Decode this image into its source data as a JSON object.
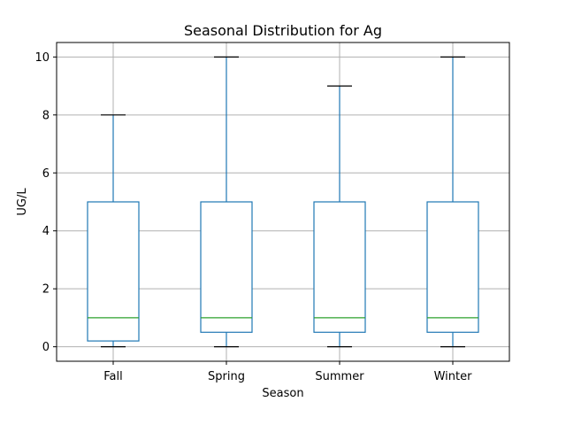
{
  "chart_data": {
    "type": "box",
    "title": "Seasonal Distribution for Ag",
    "xlabel": "Season",
    "ylabel": "UG/L",
    "ylim": [
      -0.5,
      10.5
    ],
    "yticks": [
      0,
      2,
      4,
      6,
      8,
      10
    ],
    "grid": true,
    "categories": [
      "Fall",
      "Spring",
      "Summer",
      "Winter"
    ],
    "boxes": [
      {
        "category": "Fall",
        "whisker_low": 0,
        "q1": 0.2,
        "median": 1,
        "q3": 5,
        "whisker_high": 8
      },
      {
        "category": "Spring",
        "whisker_low": 0,
        "q1": 0.5,
        "median": 1,
        "q3": 5,
        "whisker_high": 10
      },
      {
        "category": "Summer",
        "whisker_low": 0,
        "q1": 0.5,
        "median": 1,
        "q3": 5,
        "whisker_high": 9
      },
      {
        "category": "Winter",
        "whisker_low": 0,
        "q1": 0.5,
        "median": 1,
        "q3": 5,
        "whisker_high": 10
      }
    ],
    "colors": {
      "box": "#1f77b4",
      "median": "#2ca02c",
      "cap": "#000000",
      "grid": "#b0b0b0"
    }
  }
}
